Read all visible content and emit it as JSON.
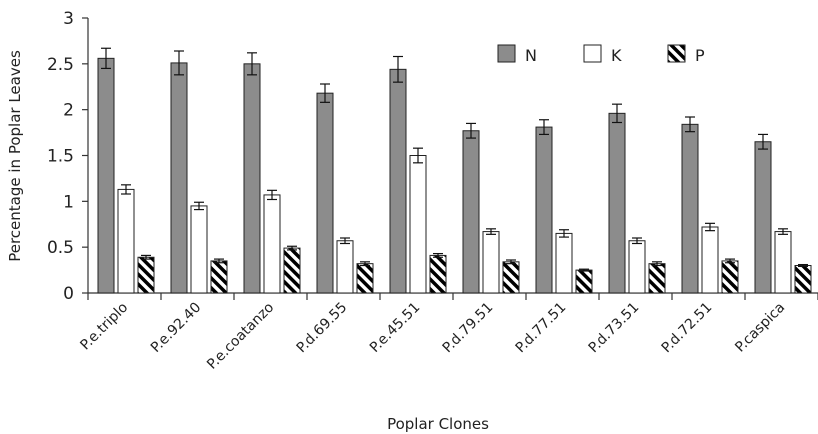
{
  "chart_data": {
    "type": "bar",
    "title": "",
    "xlabel": "Poplar Clones",
    "ylabel": "Percentage in Poplar Leaves",
    "ylim": [
      0,
      3
    ],
    "yticks": [
      "0",
      "0.5",
      "1",
      "1.5",
      "2",
      "2.5",
      "3"
    ],
    "grid": false,
    "legend_position": "top-right",
    "categories": [
      "P.e.triplo",
      "P.e.92.40",
      "P.e.coatanzo",
      "P.d.69.55",
      "P.e.45.51",
      "P.d.79.51",
      "P.d.77.51",
      "P.d.73.51",
      "P.d.72.51",
      "P.caspica"
    ],
    "series": [
      {
        "name": "N",
        "fill": "gray",
        "color": "#8c8c8c",
        "values": [
          2.56,
          2.51,
          2.5,
          2.18,
          2.44,
          1.77,
          1.81,
          1.96,
          1.84,
          1.65
        ],
        "errors": [
          0.11,
          0.13,
          0.12,
          0.1,
          0.14,
          0.08,
          0.08,
          0.1,
          0.08,
          0.08
        ]
      },
      {
        "name": "K",
        "fill": "white",
        "color": "#ffffff",
        "values": [
          1.13,
          0.95,
          1.07,
          0.57,
          1.5,
          0.67,
          0.65,
          0.57,
          0.72,
          0.67
        ],
        "errors": [
          0.05,
          0.04,
          0.05,
          0.03,
          0.08,
          0.03,
          0.04,
          0.03,
          0.04,
          0.03
        ]
      },
      {
        "name": "P",
        "fill": "hatched",
        "color": "#000000",
        "values": [
          0.39,
          0.35,
          0.49,
          0.32,
          0.41,
          0.34,
          0.25,
          0.32,
          0.35,
          0.3
        ],
        "errors": [
          0.02,
          0.02,
          0.02,
          0.02,
          0.02,
          0.02,
          0.01,
          0.02,
          0.02,
          0.01
        ]
      }
    ]
  }
}
